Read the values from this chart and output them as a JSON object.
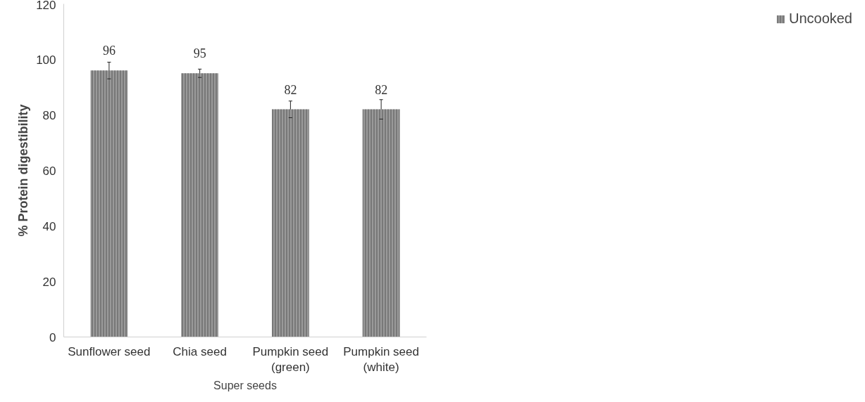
{
  "chart_data": {
    "type": "bar",
    "xlabel": "Super seeds",
    "ylabel": "% Protein digestibility",
    "categories": [
      "Sunflower seed",
      "Chia seed",
      "Pumpkin seed\n(green)",
      "Pumpkin seed\n(white)"
    ],
    "series": [
      {
        "name": "Uncooked",
        "color": "#9a9a9a",
        "values": [
          96,
          95,
          82,
          82
        ],
        "errors": [
          3,
          1.5,
          3,
          3.5
        ]
      }
    ],
    "ylim": [
      0,
      120
    ],
    "yticks": [
      0,
      20,
      40,
      60,
      80,
      100,
      120
    ],
    "data_labels": true,
    "legend": "right",
    "grid": false
  }
}
